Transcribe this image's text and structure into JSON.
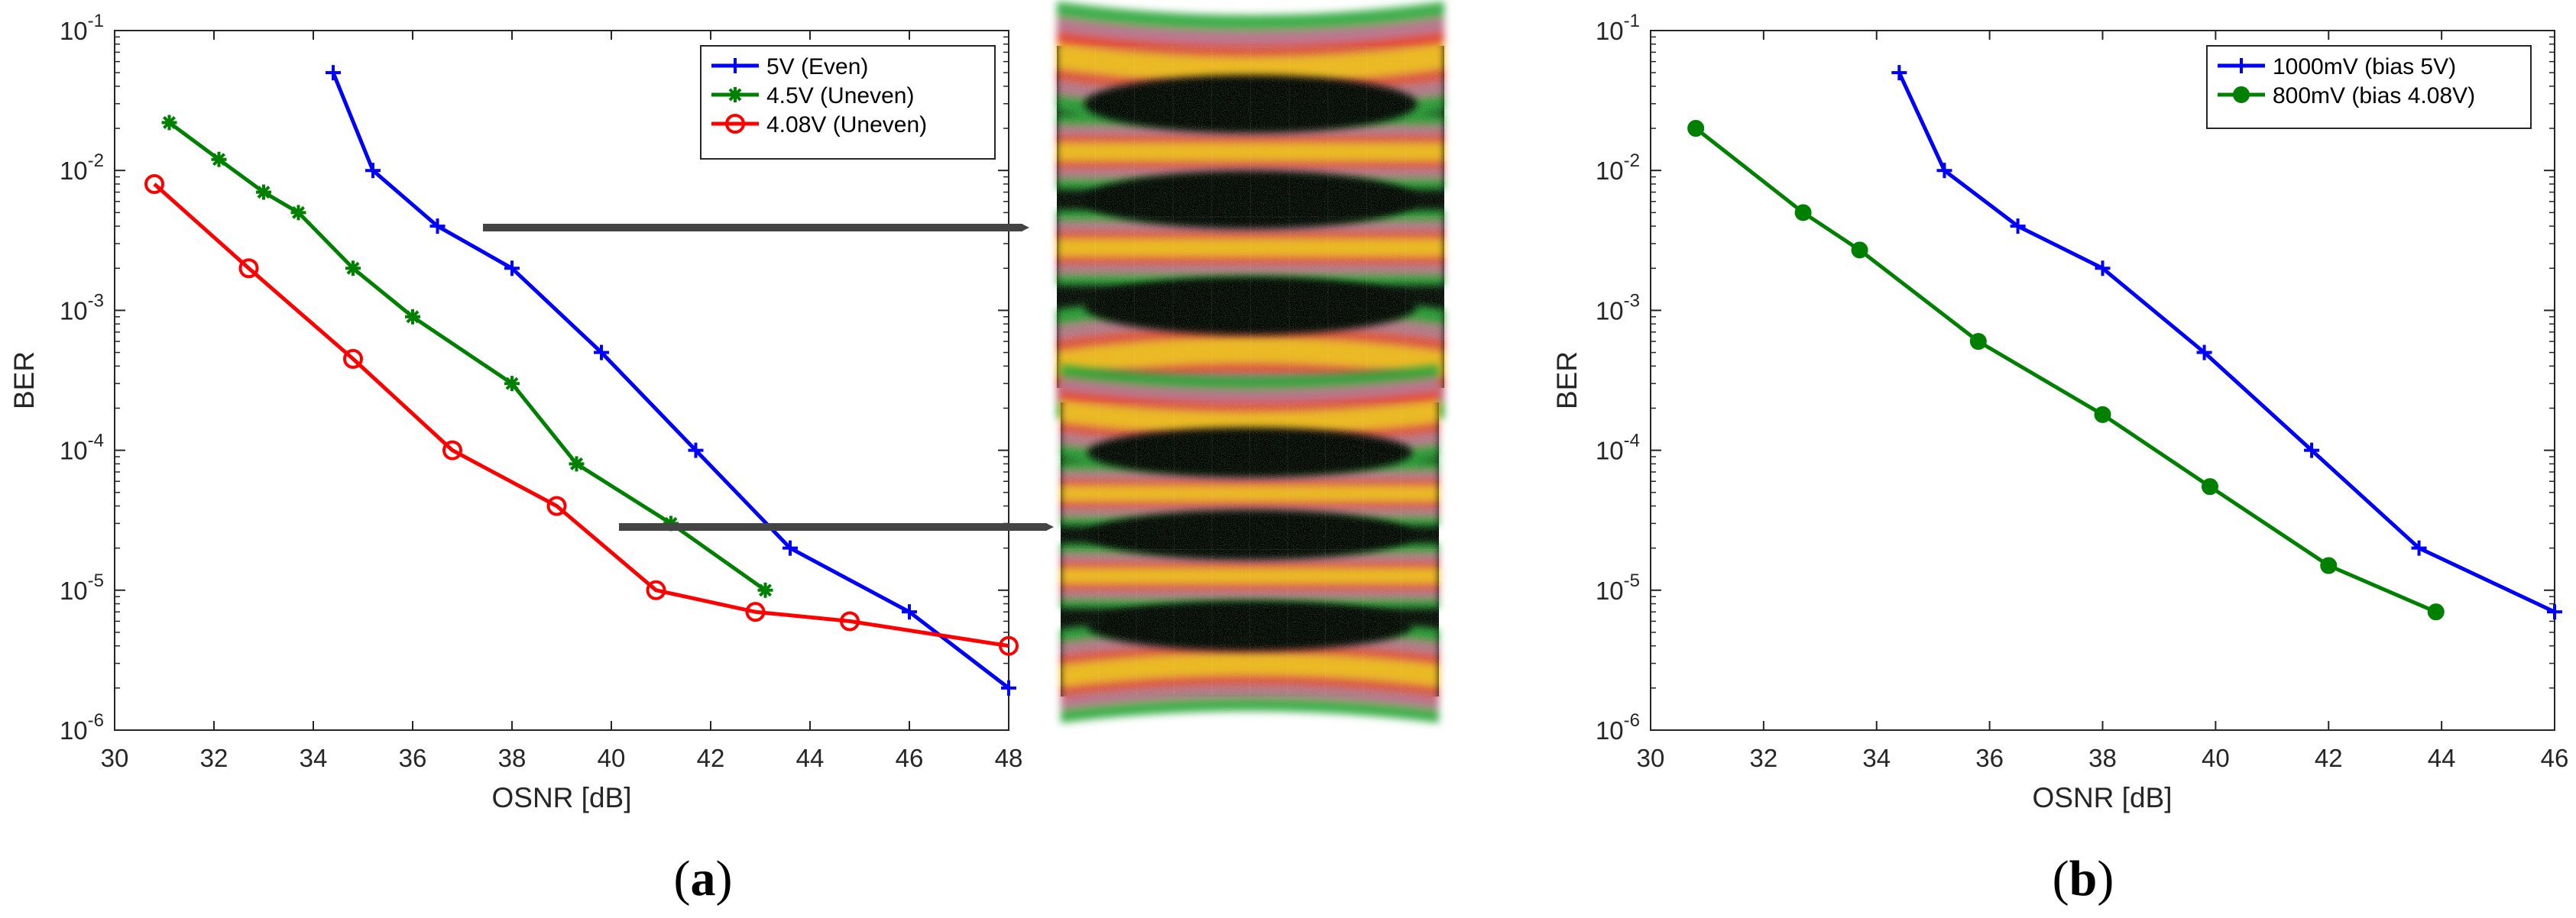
{
  "chart_data": [
    {
      "type": "line",
      "panel": "a",
      "caption": "a",
      "yscale": "log",
      "xlabel": "OSNR [dB]",
      "ylabel": "BER",
      "xlim": [
        30,
        48
      ],
      "ylim": [
        1e-06,
        0.1
      ],
      "xticks": [
        30,
        32,
        34,
        36,
        38,
        40,
        42,
        44,
        46,
        48
      ],
      "ytick_labels": [
        {
          "base": "10",
          "exp": "-6"
        },
        {
          "base": "10",
          "exp": "-5"
        },
        {
          "base": "10",
          "exp": "-4"
        },
        {
          "base": "10",
          "exp": "-3"
        },
        {
          "base": "10",
          "exp": "-2"
        },
        {
          "base": "10",
          "exp": "-1"
        }
      ],
      "legend_position": "top-right",
      "series": [
        {
          "name": "5V (Even)",
          "color": "#0000ff",
          "marker": "plus",
          "x": [
            34.4,
            35.2,
            36.5,
            38.0,
            39.8,
            41.7,
            43.6,
            46.0,
            48.0
          ],
          "y": [
            0.05,
            0.01,
            0.004,
            0.002,
            0.0005,
            0.0001,
            2e-05,
            7e-06,
            2e-06
          ]
        },
        {
          "name": "4.5V (Uneven)",
          "color": "#008000",
          "marker": "asterisk",
          "x": [
            31.1,
            32.1,
            33.0,
            33.7,
            34.8,
            36.0,
            38.0,
            39.3,
            41.2,
            43.1
          ],
          "y": [
            0.022,
            0.012,
            0.007,
            0.005,
            0.002,
            0.0009,
            0.0003,
            8e-05,
            3e-05,
            1e-05
          ]
        },
        {
          "name": "4.08V (Uneven)",
          "color": "#ff0000",
          "marker": "circle",
          "x": [
            30.8,
            32.7,
            34.8,
            36.8,
            38.9,
            40.9,
            42.9,
            44.8,
            48.0
          ],
          "y": [
            0.008,
            0.002,
            0.00045,
            0.0001,
            4e-05,
            1e-05,
            7e-06,
            6e-06,
            4e-06
          ]
        }
      ]
    },
    {
      "type": "line",
      "panel": "b",
      "caption": "b",
      "yscale": "log",
      "xlabel": "OSNR [dB]",
      "ylabel": "BER",
      "xlim": [
        30,
        46
      ],
      "ylim": [
        1e-06,
        0.1
      ],
      "xticks": [
        30,
        32,
        34,
        36,
        38,
        40,
        42,
        44,
        46
      ],
      "ytick_labels": [
        {
          "base": "10",
          "exp": "-6"
        },
        {
          "base": "10",
          "exp": "-5"
        },
        {
          "base": "10",
          "exp": "-4"
        },
        {
          "base": "10",
          "exp": "-3"
        },
        {
          "base": "10",
          "exp": "-2"
        },
        {
          "base": "10",
          "exp": "-1"
        }
      ],
      "legend_position": "top-right",
      "series": [
        {
          "name": "1000mV (bias 5V)",
          "color": "#0000ff",
          "marker": "plus",
          "x": [
            34.4,
            35.2,
            36.5,
            38.0,
            39.8,
            41.7,
            43.6,
            46.0
          ],
          "y": [
            0.05,
            0.01,
            0.004,
            0.002,
            0.0005,
            0.0001,
            2e-05,
            7e-06
          ]
        },
        {
          "name": "800mV (bias 4.08V)",
          "color": "#008000",
          "marker": "dot",
          "x": [
            30.8,
            32.7,
            33.7,
            35.8,
            38.0,
            39.9,
            42.0,
            43.9
          ],
          "y": [
            0.02,
            0.005,
            0.0027,
            0.0006,
            0.00018,
            5.5e-05,
            1.5e-05,
            7e-06
          ]
        }
      ]
    }
  ],
  "eye_diagrams": {
    "count": 2,
    "arrow_color": "#444444",
    "colors": {
      "background": "#050505",
      "outer": "#2fa63a",
      "middle": "#e2503a",
      "core": "#f2b51a",
      "pink": "#d86aa0"
    }
  }
}
